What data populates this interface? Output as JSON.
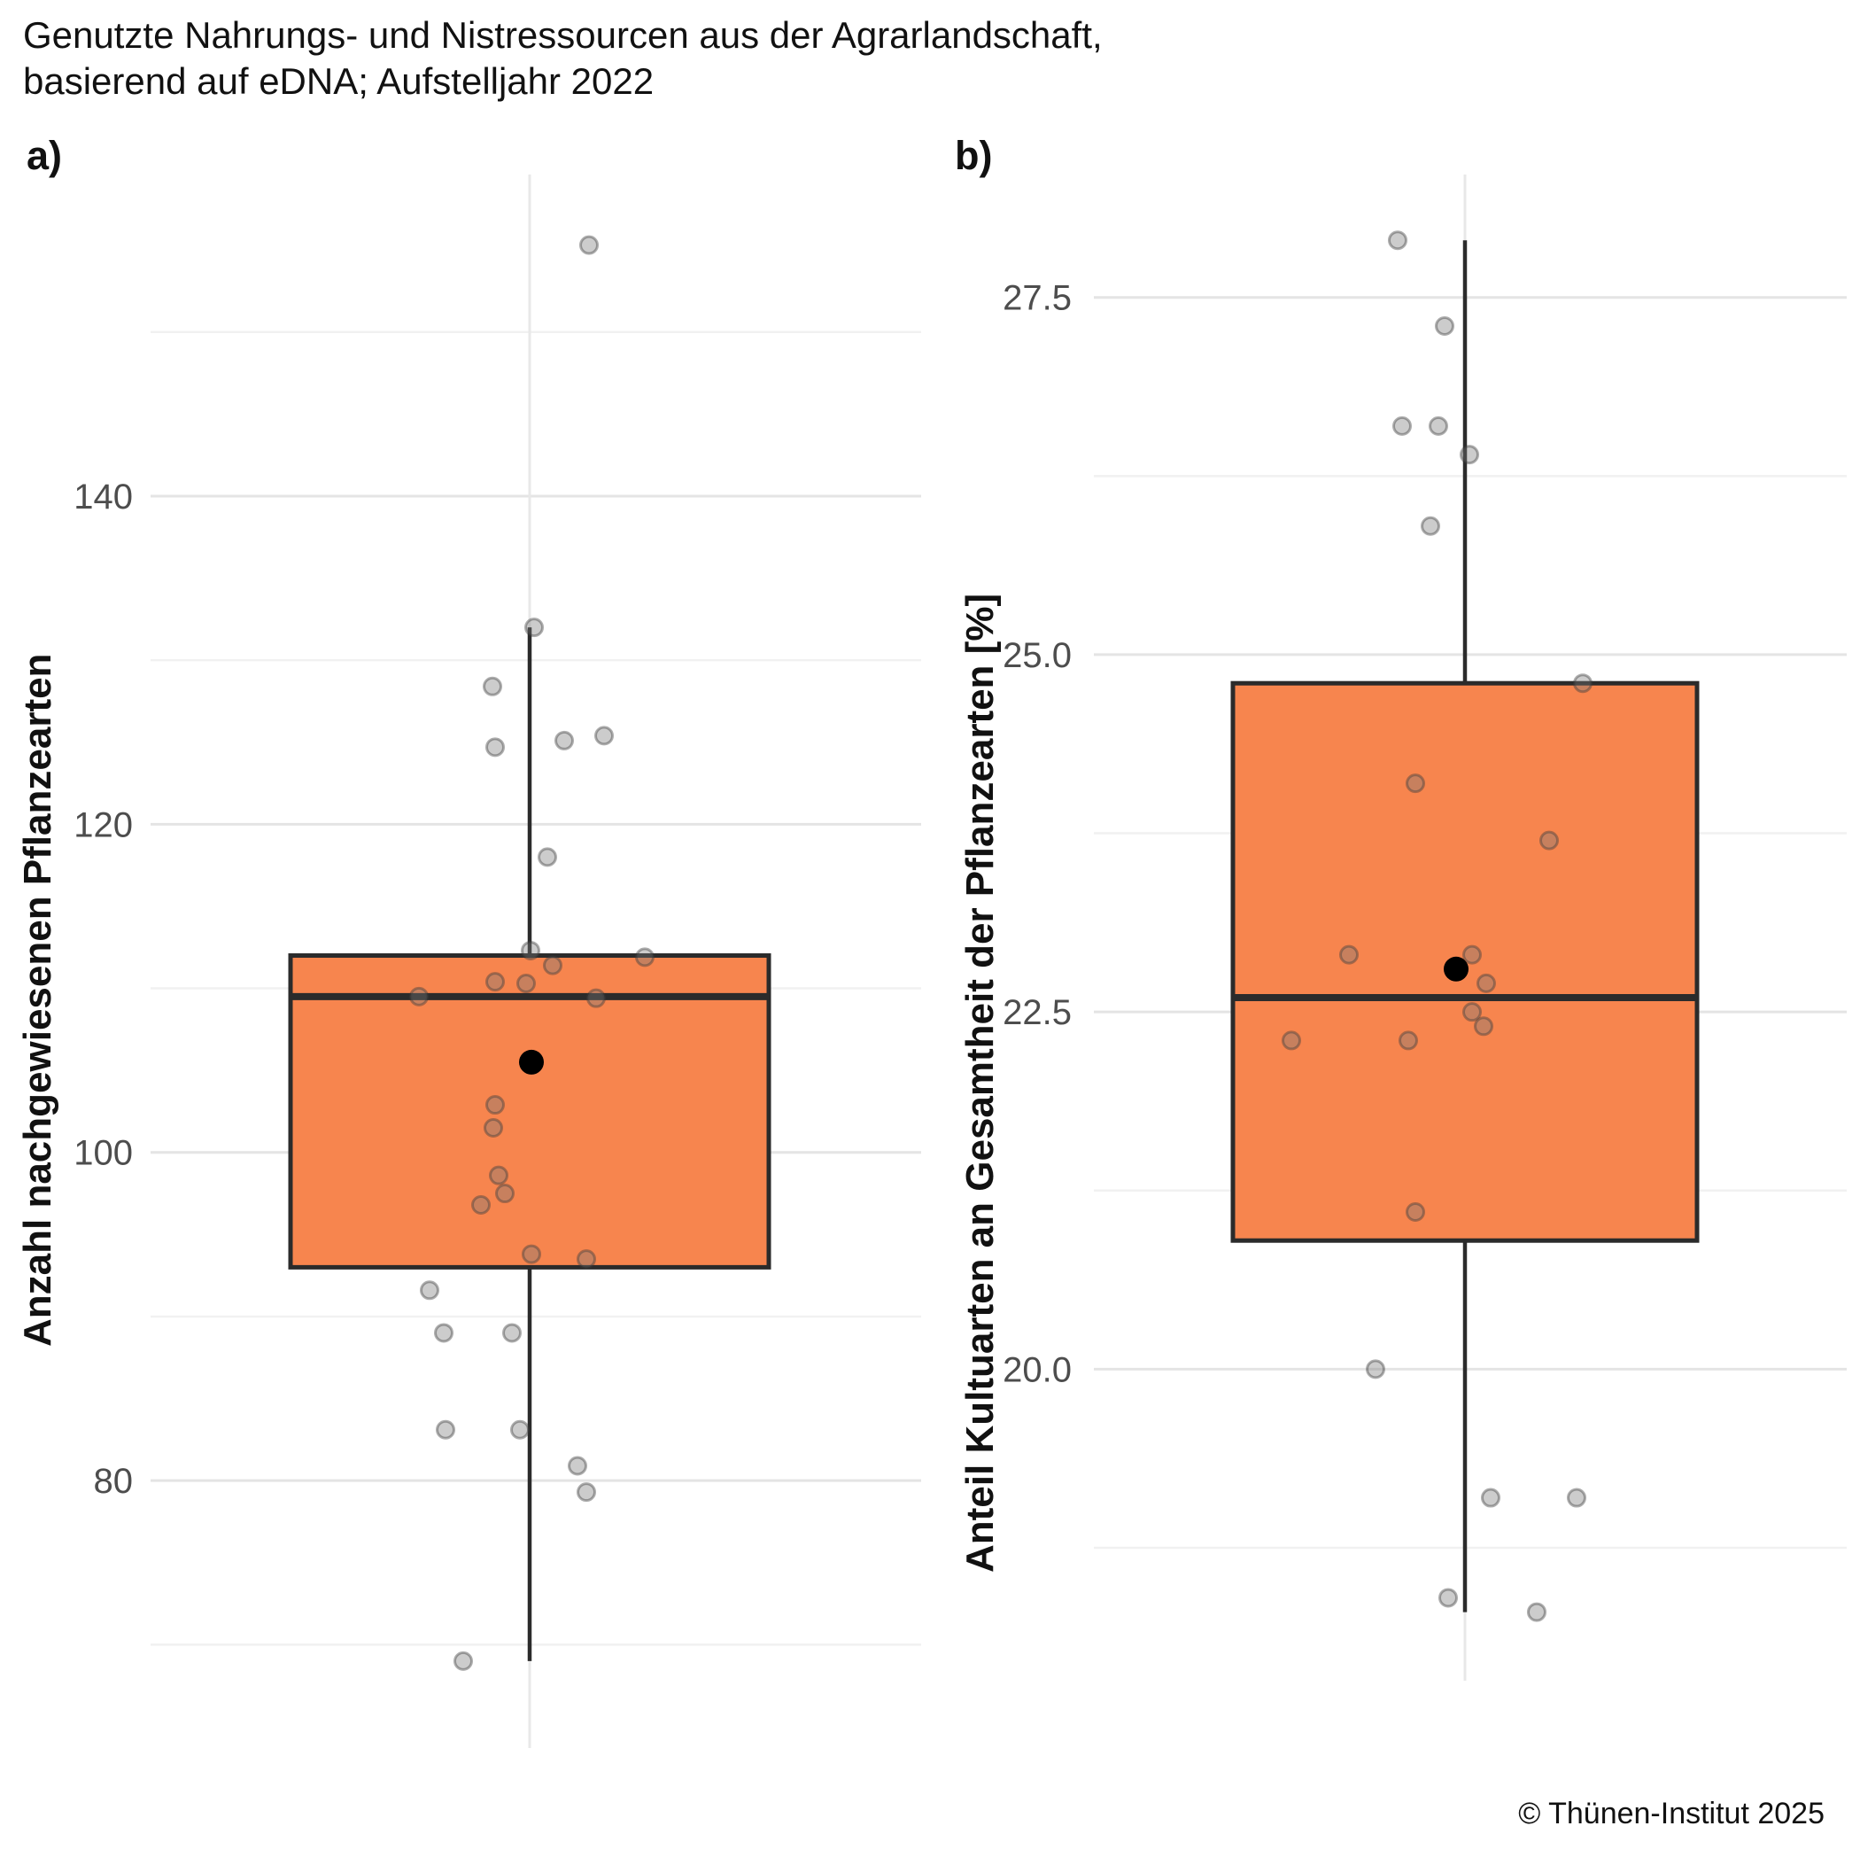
{
  "title": "Genutzte Nahrungs- und Nistressourcen aus der Agrarlandschaft,\nbasierend auf eDNA; Aufstelljahr 2022",
  "copyright": "© Thünen-Institut 2025",
  "colors": {
    "box_fill": "#F7854E",
    "box_stroke": "#2B2B2B",
    "median": "#2B2B2B",
    "whisker": "#2B2B2B",
    "mean_point": "#000000",
    "point_fill": "rgba(120,120,120,0.38)",
    "point_stroke": "rgba(60,60,60,0.42)",
    "grid_major": "#E4E4E4",
    "grid_minor": "#F1F1F1",
    "grid_vertical": "#E8E8E8",
    "tick_label": "#4D4D4D"
  },
  "chart_data": [
    {
      "type": "boxplot",
      "panel_tag": "a)",
      "ylabel": "Anzahl nachgewiesenen Pflanzearten",
      "ylim": [
        63.7,
        159.6
      ],
      "yticks": [
        140,
        120,
        100,
        80
      ],
      "ytick_labels": [
        "140",
        "120",
        "100",
        "80"
      ],
      "grid_minor": [
        150,
        130,
        110,
        90,
        70
      ],
      "box": {
        "min": 69,
        "q1": 93,
        "median": 109.5,
        "q3": 112,
        "max": 132,
        "mean": 105.5,
        "outliers": [
          155.3
        ]
      },
      "points": [
        {
          "v": 155.3,
          "dx": 67
        },
        {
          "v": 132.0,
          "dx": 5
        },
        {
          "v": 128.4,
          "dx": -42
        },
        {
          "v": 125.4,
          "dx": 84
        },
        {
          "v": 125.1,
          "dx": 39
        },
        {
          "v": 124.7,
          "dx": -39
        },
        {
          "v": 118.0,
          "dx": 20
        },
        {
          "v": 112.3,
          "dx": 1
        },
        {
          "v": 111.9,
          "dx": 130
        },
        {
          "v": 111.4,
          "dx": 26
        },
        {
          "v": 110.4,
          "dx": -39
        },
        {
          "v": 110.3,
          "dx": -4
        },
        {
          "v": 109.5,
          "dx": -125
        },
        {
          "v": 109.4,
          "dx": 75
        },
        {
          "v": 102.9,
          "dx": -39
        },
        {
          "v": 101.5,
          "dx": -41
        },
        {
          "v": 98.6,
          "dx": -35
        },
        {
          "v": 97.5,
          "dx": -28
        },
        {
          "v": 96.8,
          "dx": -55
        },
        {
          "v": 93.8,
          "dx": 2
        },
        {
          "v": 93.5,
          "dx": 64
        },
        {
          "v": 91.6,
          "dx": -113
        },
        {
          "v": 89.0,
          "dx": -97
        },
        {
          "v": 89.0,
          "dx": -20
        },
        {
          "v": 83.1,
          "dx": -95
        },
        {
          "v": 83.1,
          "dx": -11
        },
        {
          "v": 80.9,
          "dx": 54
        },
        {
          "v": 79.3,
          "dx": 64
        },
        {
          "v": 69.0,
          "dx": -75
        }
      ]
    },
    {
      "type": "boxplot",
      "panel_tag": "b)",
      "ylabel": "Anteil Kultuarten an Gesamtheit der Pflanzearten [%]",
      "ylim": [
        17.82,
        28.36
      ],
      "yticks": [
        27.5,
        25.0,
        22.5,
        20.0
      ],
      "ytick_labels": [
        "27.5",
        "25.0",
        "22.5",
        "20.0"
      ],
      "grid_minor": [
        26.25,
        23.75,
        21.25,
        18.75
      ],
      "box": {
        "min": 18.3,
        "q1": 20.9,
        "median": 22.6,
        "q3": 24.8,
        "max": 27.9,
        "mean": 22.8,
        "outliers": []
      },
      "points": [
        {
          "v": 27.9,
          "dx": -76
        },
        {
          "v": 27.3,
          "dx": -23
        },
        {
          "v": 26.6,
          "dx": -71
        },
        {
          "v": 26.6,
          "dx": -30
        },
        {
          "v": 26.4,
          "dx": 5
        },
        {
          "v": 25.9,
          "dx": -39
        },
        {
          "v": 24.8,
          "dx": 133
        },
        {
          "v": 24.1,
          "dx": -56
        },
        {
          "v": 23.7,
          "dx": 95
        },
        {
          "v": 22.9,
          "dx": 8
        },
        {
          "v": 22.9,
          "dx": -131
        },
        {
          "v": 22.7,
          "dx": 24
        },
        {
          "v": 22.5,
          "dx": 8
        },
        {
          "v": 22.4,
          "dx": 21
        },
        {
          "v": 22.3,
          "dx": -64
        },
        {
          "v": 22.3,
          "dx": -196
        },
        {
          "v": 21.1,
          "dx": -56
        },
        {
          "v": 20.0,
          "dx": -101
        },
        {
          "v": 19.1,
          "dx": 29
        },
        {
          "v": 19.1,
          "dx": 126
        },
        {
          "v": 18.4,
          "dx": -19
        },
        {
          "v": 18.3,
          "dx": 81
        }
      ]
    }
  ]
}
